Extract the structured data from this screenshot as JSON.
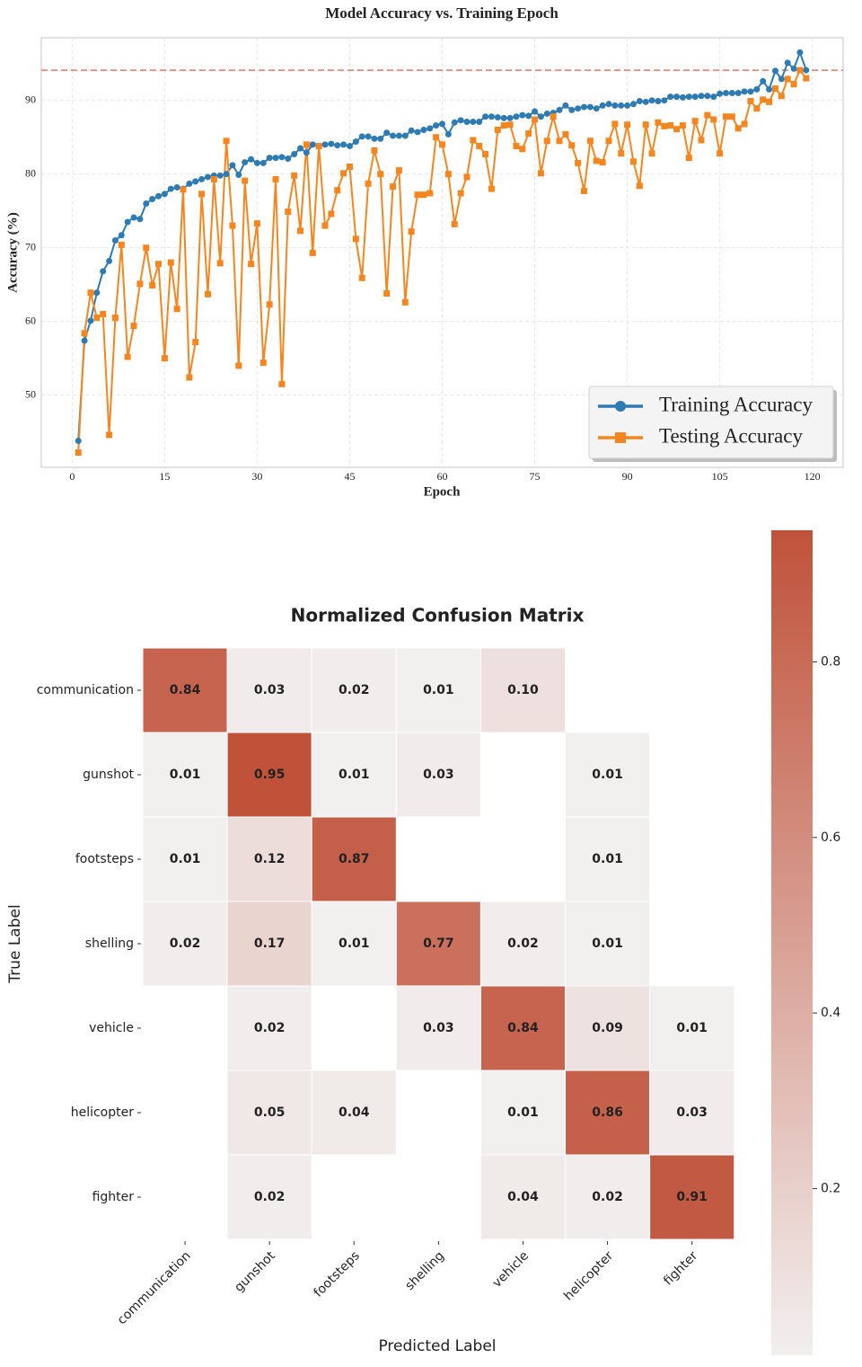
{
  "chart_data": [
    {
      "type": "line",
      "title": "Model Accuracy vs. Training Epoch",
      "x_label": "Epoch",
      "y_label": "Accuracy (%)",
      "x": [
        1,
        2,
        3,
        4,
        5,
        6,
        7,
        8,
        9,
        10,
        11,
        12,
        13,
        14,
        15,
        16,
        17,
        18,
        19,
        20,
        21,
        22,
        23,
        24,
        25,
        26,
        27,
        28,
        29,
        30,
        31,
        32,
        33,
        34,
        35,
        36,
        37,
        38,
        39,
        40,
        41,
        42,
        43,
        44,
        45,
        46,
        47,
        48,
        49,
        50,
        51,
        52,
        53,
        54,
        55,
        56,
        57,
        58,
        59,
        60,
        61,
        62,
        63,
        64,
        65,
        66,
        67,
        68,
        69,
        70,
        71,
        72,
        73,
        74,
        75,
        76,
        77,
        78,
        79,
        80,
        81,
        82,
        83,
        84,
        85,
        86,
        87,
        88,
        89,
        90,
        91,
        92,
        93,
        94,
        95,
        96,
        97,
        98,
        99,
        100,
        101,
        102,
        103,
        104,
        105,
        106,
        107,
        108,
        109,
        110,
        111,
        112,
        113,
        114,
        115,
        116,
        117,
        118,
        119
      ],
      "series": [
        {
          "name": "Training Accuracy",
          "color": "#2e7bb4",
          "marker": "circle",
          "values": [
            43.8,
            57.4,
            60.1,
            63.9,
            66.8,
            68.2,
            71.0,
            71.7,
            73.5,
            74.1,
            73.9,
            76.0,
            76.6,
            77.0,
            77.3,
            78.0,
            78.2,
            78.0,
            78.7,
            79.0,
            79.3,
            79.6,
            79.8,
            79.8,
            80.0,
            81.2,
            79.9,
            81.6,
            82.0,
            81.5,
            81.5,
            82.2,
            82.2,
            82.3,
            82.1,
            82.7,
            83.5,
            82.9,
            84.0,
            83.8,
            84.0,
            84.1,
            83.9,
            84.0,
            83.8,
            84.4,
            85.1,
            85.1,
            84.8,
            84.8,
            85.6,
            85.2,
            85.2,
            85.2,
            85.9,
            85.7,
            86.0,
            86.2,
            86.6,
            86.8,
            85.4,
            87.0,
            87.3,
            87.1,
            87.1,
            87.1,
            87.8,
            87.8,
            87.7,
            87.6,
            87.6,
            87.8,
            88.0,
            87.9,
            88.5,
            87.8,
            88.2,
            88.3,
            88.7,
            89.3,
            88.7,
            88.9,
            89.1,
            89.1,
            88.9,
            89.3,
            89.5,
            89.3,
            89.3,
            89.3,
            89.5,
            89.9,
            89.8,
            90.0,
            89.9,
            90.0,
            90.5,
            90.5,
            90.4,
            90.5,
            90.5,
            90.6,
            90.6,
            90.5,
            90.9,
            91.0,
            91.0,
            91.0,
            91.2,
            91.2,
            91.5,
            92.6,
            91.5,
            94.0,
            92.9,
            95.1,
            94.3,
            96.5,
            94.1
          ]
        },
        {
          "name": "Testing Accuracy",
          "color": "#f5861f",
          "marker": "square",
          "values": [
            42.2,
            58.4,
            63.9,
            60.5,
            61.0,
            44.6,
            60.5,
            70.4,
            55.2,
            59.4,
            65.1,
            70.0,
            64.9,
            67.8,
            55.0,
            68.0,
            61.7,
            77.9,
            52.4,
            57.2,
            77.3,
            63.7,
            79.3,
            67.9,
            84.5,
            73.0,
            54.0,
            79.1,
            67.8,
            73.3,
            54.4,
            62.3,
            79.3,
            51.5,
            74.9,
            79.8,
            72.3,
            84.0,
            69.3,
            83.8,
            73.0,
            74.6,
            77.8,
            80.1,
            81.0,
            71.2,
            65.9,
            78.7,
            83.2,
            80.0,
            63.8,
            78.3,
            80.5,
            62.6,
            72.2,
            77.2,
            77.2,
            77.4,
            85.0,
            84.0,
            80.0,
            73.2,
            77.4,
            79.6,
            84.6,
            83.8,
            82.7,
            78.0,
            86.0,
            86.6,
            86.7,
            83.8,
            83.4,
            85.5,
            87.4,
            80.1,
            84.5,
            87.8,
            84.5,
            85.4,
            83.9,
            81.5,
            77.7,
            84.5,
            81.8,
            81.6,
            84.5,
            86.8,
            82.8,
            86.7,
            81.7,
            78.4,
            86.7,
            82.8,
            87.0,
            86.5,
            86.6,
            86.1,
            86.6,
            82.2,
            87.2,
            84.6,
            88.0,
            87.4,
            82.8,
            87.8,
            87.8,
            86.2,
            86.8,
            89.9,
            88.9,
            90.1,
            89.8,
            91.6,
            90.6,
            92.9,
            92.2,
            94.1,
            93.0
          ]
        }
      ],
      "xlim": [
        -5,
        125
      ],
      "ylim": [
        40.2,
        98.5
      ],
      "xticks": [
        0,
        15,
        30,
        45,
        60,
        75,
        90,
        105,
        120
      ],
      "yticks": [
        50,
        60,
        70,
        80,
        90
      ],
      "grid": true,
      "legend": "lower right",
      "reference_line": 94.1,
      "reference_color": "#e8756b"
    },
    {
      "type": "heatmap",
      "title": "Normalized Confusion Matrix",
      "x_label": "Predicted Label",
      "y_label": "True Label",
      "x_categories": [
        "communication",
        "gunshot",
        "footsteps",
        "shelling",
        "vehicle",
        "helicopter",
        "fighter"
      ],
      "y_categories": [
        "communication",
        "gunshot",
        "footsteps",
        "shelling",
        "vehicle",
        "helicopter",
        "fighter"
      ],
      "values": [
        [
          0.84,
          0.03,
          0.02,
          0.01,
          0.1,
          null,
          null
        ],
        [
          0.01,
          0.95,
          0.01,
          0.03,
          null,
          0.01,
          null
        ],
        [
          0.01,
          0.12,
          0.87,
          null,
          null,
          0.01,
          null
        ],
        [
          0.02,
          0.17,
          0.01,
          0.77,
          0.02,
          0.01,
          null
        ],
        [
          null,
          0.02,
          null,
          0.03,
          0.84,
          0.09,
          0.01
        ],
        [
          null,
          0.05,
          0.04,
          null,
          0.01,
          0.86,
          0.03
        ],
        [
          null,
          0.02,
          null,
          null,
          0.04,
          0.02,
          0.91
        ]
      ],
      "value_labels": [
        [
          "0.84",
          "0.03",
          "0.02",
          "0.01",
          "0.10",
          null,
          null
        ],
        [
          "0.01",
          "0.95",
          "0.01",
          "0.03",
          null,
          "0.01",
          null
        ],
        [
          "0.01",
          "0.12",
          "0.87",
          null,
          null,
          "0.01",
          null
        ],
        [
          "0.02",
          "0.17",
          "0.01",
          "0.77",
          "0.02",
          "0.01",
          null
        ],
        [
          null,
          "0.02",
          null,
          "0.03",
          "0.84",
          "0.09",
          "0.01"
        ],
        [
          null,
          "0.05",
          "0.04",
          null,
          "0.01",
          "0.86",
          "0.03"
        ],
        [
          null,
          "0.02",
          null,
          null,
          "0.04",
          "0.02",
          "0.91"
        ]
      ],
      "clim": [
        0.01,
        0.95
      ],
      "cticks": [
        0.2,
        0.4,
        0.6,
        0.8
      ],
      "colors": [
        "#f2efef",
        "#c0523a"
      ]
    }
  ]
}
